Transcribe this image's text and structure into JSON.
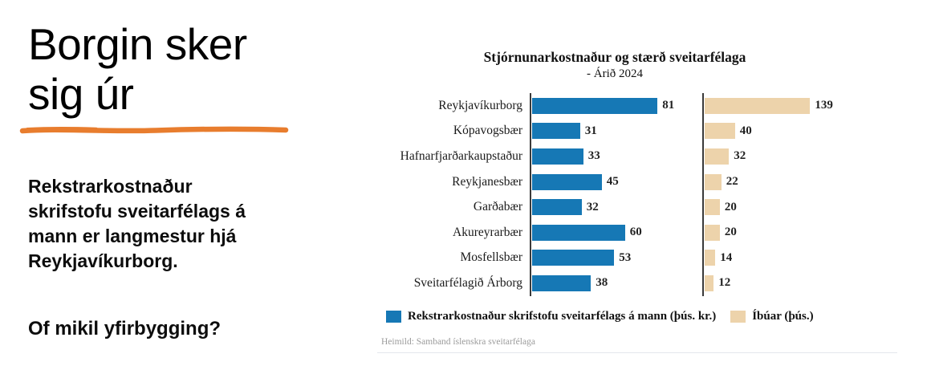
{
  "left_panel": {
    "heading": "Borgin sker sig úr",
    "heading_lines": [
      "Borgin sker",
      "sig úr"
    ],
    "underline_color": "#e87d2e",
    "paragraph": "Rekstrarkostnaður skrifstofu sveitarfélags á mann er langmestur hjá Reykjavíkurborg.",
    "paragraph_lines": [
      "Rekstrarkostnaður",
      "skrifstofu sveitarfélags á",
      "mann er langmestur hjá",
      "Reykjavíkurborg."
    ],
    "question": "Of mikil yfirbygging?"
  },
  "chart": {
    "title": "Stjórnunarkostnaður og stærð sveitarfélaga",
    "subtitle": "- Árið 2024",
    "source": "Heimild: Samband íslenskra sveitarfélaga",
    "legend": [
      {
        "label": "Rekstrarkostnaður skrifstofu sveitarfélags á mann (þús. kr.)",
        "color": "#1678b5"
      },
      {
        "label": "Íbúar (þús.)",
        "color": "#edd3ab"
      }
    ]
  },
  "chart_data": {
    "type": "bar",
    "orientation": "horizontal",
    "title": "Stjórnunarkostnaður og stærð sveitarfélaga",
    "subtitle": "- Árið 2024",
    "categories": [
      "Reykjavíkurborg",
      "Kópavogsbær",
      "Hafnarfjarðarkaupstaður",
      "Reykjanesbær",
      "Garðabær",
      "Akureyrarbær",
      "Mosfellsbær",
      "Sveitarfélagið Árborg"
    ],
    "series": [
      {
        "name": "Rekstrarkostnaður skrifstofu sveitarfélags á mann (þús. kr.)",
        "color": "#1678b5",
        "values": [
          81,
          31,
          33,
          45,
          32,
          60,
          53,
          38
        ],
        "axis_max": 90
      },
      {
        "name": "Íbúar (þús.)",
        "color": "#edd3ab",
        "values": [
          139,
          40,
          32,
          22,
          20,
          20,
          14,
          12
        ],
        "axis_max": 150
      }
    ],
    "value_labels": true,
    "grid": false,
    "legend_position": "bottom",
    "source": "Heimild: Samband íslenskra sveitarfélaga"
  }
}
